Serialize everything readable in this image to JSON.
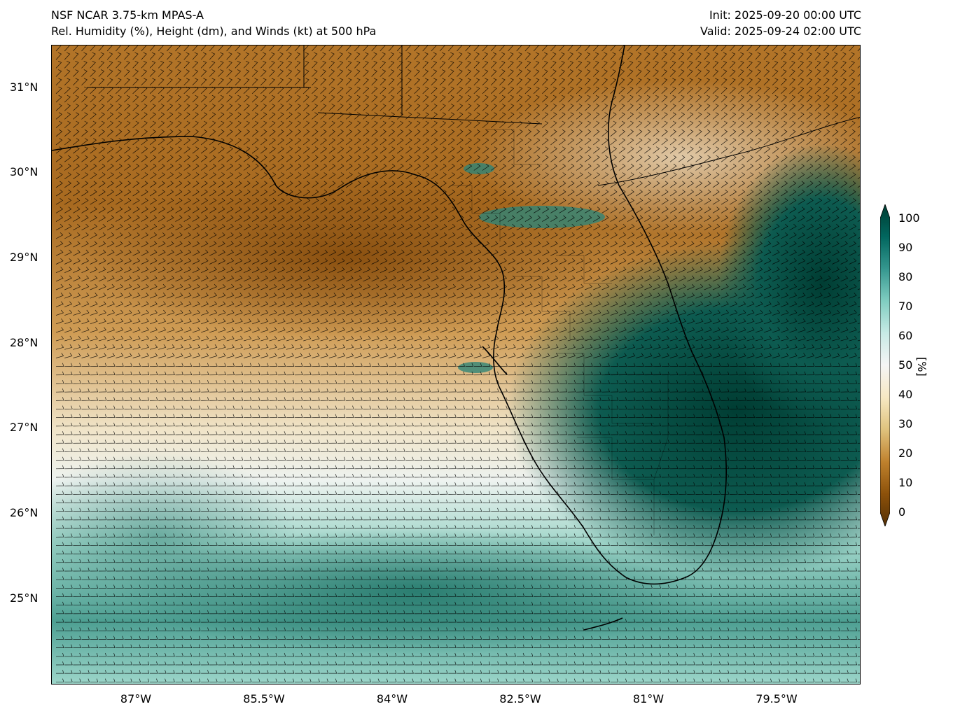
{
  "titles": {
    "model": "NSF NCAR 3.75-km MPAS-A",
    "fields": "Rel. Humidity (%), Height (dm), and Winds (kt) at 500 hPa",
    "init": "Init: 2025-09-20 00:00 UTC",
    "valid": "Valid: 2025-09-24 02:00 UTC"
  },
  "map": {
    "extent": {
      "lon_min": -88.1,
      "lon_max": -78.3,
      "lat_min": 24.0,
      "lat_max": 31.5
    },
    "lat_ticks": [
      "31°N",
      "30°N",
      "29°N",
      "28°N",
      "27°N",
      "26°N",
      "25°N"
    ],
    "lon_ticks": [
      "87°W",
      "85.5°W",
      "84°W",
      "82.5°W",
      "81°W",
      "79.5°W"
    ],
    "field": "relative humidity",
    "overlay": "wind barbs",
    "palette": {
      "dry": "#8f560e",
      "mid_dry": "#d6a55a",
      "neutral": "#f2efe6",
      "mid_moist": "#7cc4b7",
      "moist": "#003d33",
      "lines": "#000000"
    }
  },
  "colorbar": {
    "ticks": [
      "100",
      "90",
      "80",
      "70",
      "60",
      "50",
      "40",
      "30",
      "20",
      "10",
      "0"
    ],
    "unit": "[%]",
    "min": 0,
    "max": 100
  }
}
